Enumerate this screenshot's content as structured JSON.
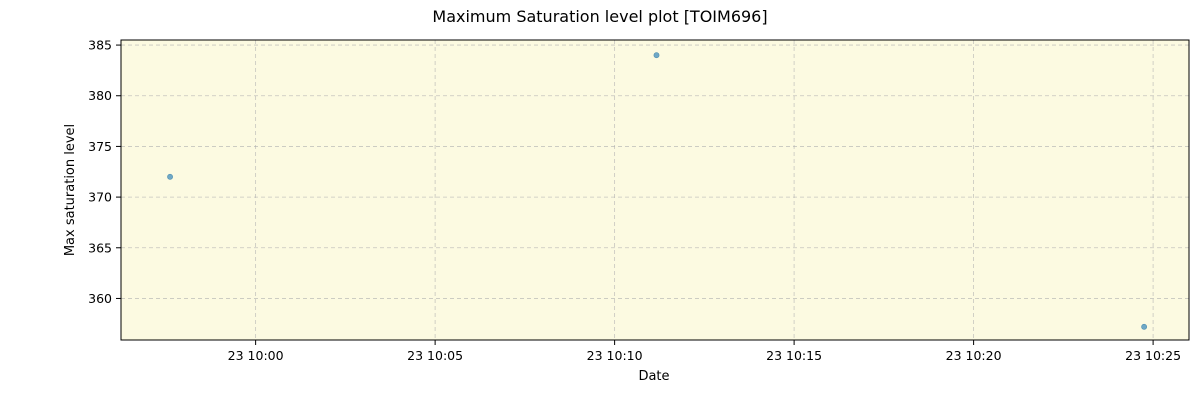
{
  "chart_data": {
    "type": "scatter",
    "title": "Maximum Saturation level plot [TOIM696]",
    "xlabel": "Date",
    "ylabel": "Max saturation level",
    "x_axis": "time",
    "xlim": [
      "23 09:56:15",
      "23 10:26:00"
    ],
    "ylim": [
      355.9,
      385.5
    ],
    "x_ticks": [
      {
        "value": "23 10:00:00",
        "label": "23 10:00"
      },
      {
        "value": "23 10:05:00",
        "label": "23 10:05"
      },
      {
        "value": "23 10:10:00",
        "label": "23 10:10"
      },
      {
        "value": "23 10:15:00",
        "label": "23 10:15"
      },
      {
        "value": "23 10:20:00",
        "label": "23 10:20"
      },
      {
        "value": "23 10:25:00",
        "label": "23 10:25"
      }
    ],
    "y_ticks": [
      360,
      365,
      370,
      375,
      380,
      385
    ],
    "grid": true,
    "plot_background": "#fcfae1",
    "point_color": "#6fa8c6",
    "points": [
      {
        "x": "23 09:57:37",
        "y": 372
      },
      {
        "x": "23 10:11:10",
        "y": 384
      },
      {
        "x": "23 10:24:45",
        "y": 357.2
      }
    ]
  }
}
